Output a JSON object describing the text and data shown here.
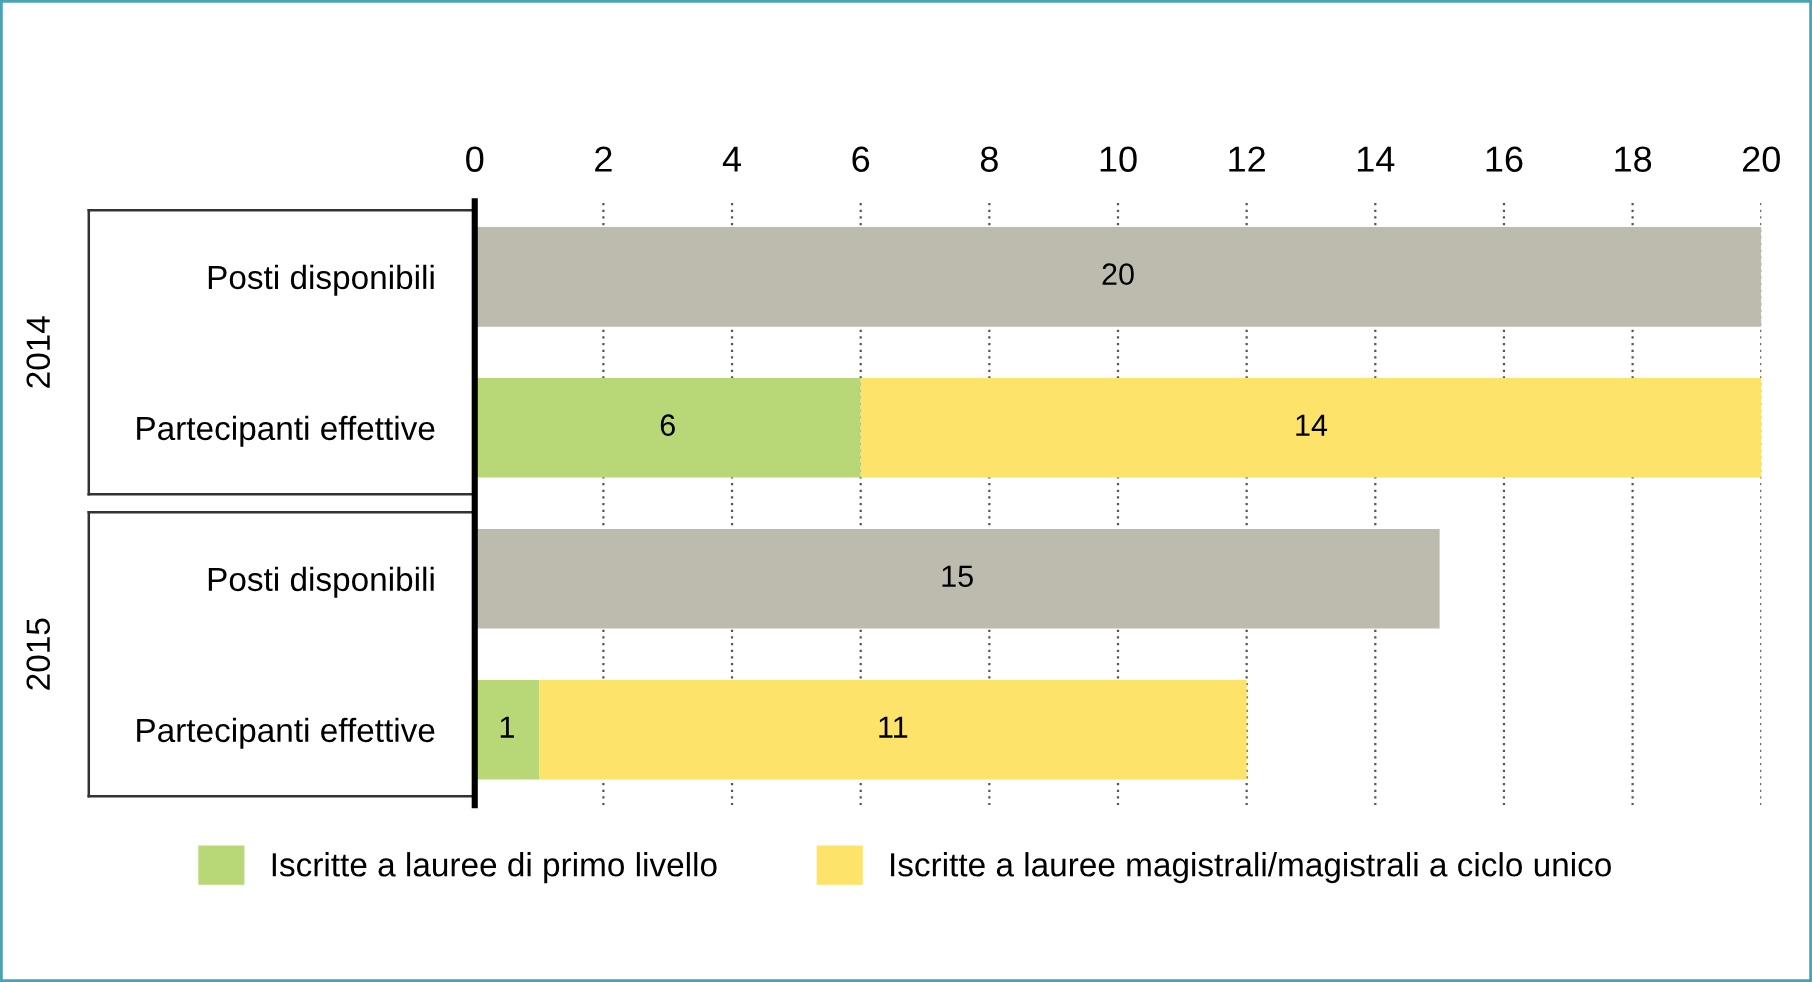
{
  "chart_data": {
    "type": "bar",
    "orientation": "horizontal",
    "stacked": true,
    "categories": [
      "Posti disponibili",
      "Partecipanti effettive",
      "Posti disponibili",
      "Partecipanti effettive"
    ],
    "annotations": [
      "2014",
      "2015"
    ],
    "series": [
      {
        "color": "#bdbbae",
        "values": [
          20,
          null,
          15,
          null
        ]
      },
      {
        "name": "Iscritte a lauree di primo livello",
        "color": "#b8d776",
        "values": [
          null,
          6,
          null,
          1
        ]
      },
      {
        "name": "Iscritte a lauree magistrali/magistrali a ciclo unico",
        "color": "#fde36a",
        "values": [
          null,
          14,
          null,
          11
        ]
      }
    ],
    "xlim": [
      0,
      20
    ],
    "xticks": [
      0,
      2,
      4,
      6,
      8,
      10,
      12,
      14,
      16,
      18,
      20
    ],
    "grid": "x",
    "legend": "bottom",
    "data_labels": true
  }
}
